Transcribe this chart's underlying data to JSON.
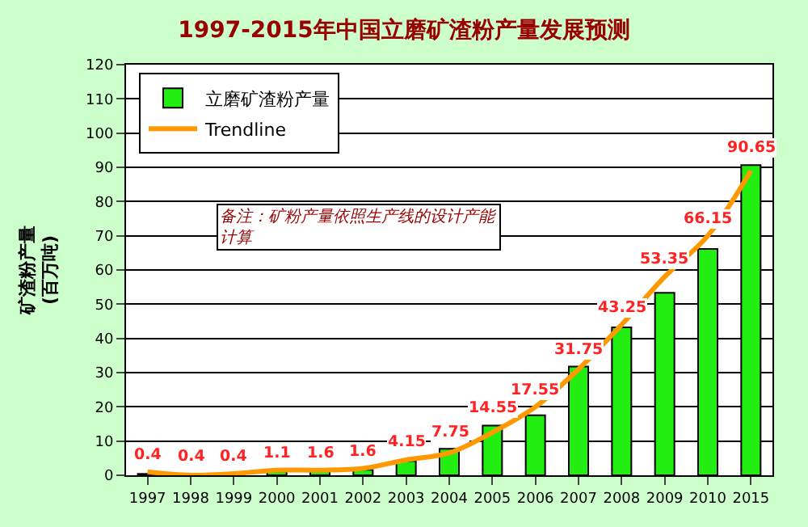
{
  "chart_data": {
    "type": "bar",
    "title": "1997-2015年中国立磨矿渣粉产量发展预测",
    "ylabel": "矿渣粉产量\n(百万吨)",
    "categories": [
      "1997",
      "1998",
      "1999",
      "2000",
      "2001",
      "2002",
      "2003",
      "2004",
      "2005",
      "2006",
      "2007",
      "2008",
      "2009",
      "2010",
      "2015"
    ],
    "series": [
      {
        "name": "立磨矿渣粉产量",
        "color": "#22ee11",
        "values": [
          0.4,
          0.4,
          0.4,
          1.1,
          1.6,
          1.6,
          4.15,
          7.75,
          14.55,
          17.55,
          31.75,
          43.25,
          53.35,
          66.15,
          90.65
        ],
        "data_labels": true
      },
      {
        "name": "Trendline",
        "type": "line",
        "color": "#ff9900",
        "values": [
          1,
          0,
          0.5,
          1.5,
          1.5,
          2,
          4.5,
          6.5,
          12.5,
          20,
          31,
          44,
          58,
          70,
          89
        ],
        "marker": "none"
      }
    ],
    "ylim": [
      0,
      120
    ],
    "yticks": [
      0,
      10,
      20,
      30,
      40,
      50,
      60,
      70,
      80,
      90,
      100,
      110,
      120
    ],
    "grid": "y",
    "legend": "top left",
    "annotations": [
      "备注：矿粉产量依照生产线的设计产能计算"
    ]
  }
}
